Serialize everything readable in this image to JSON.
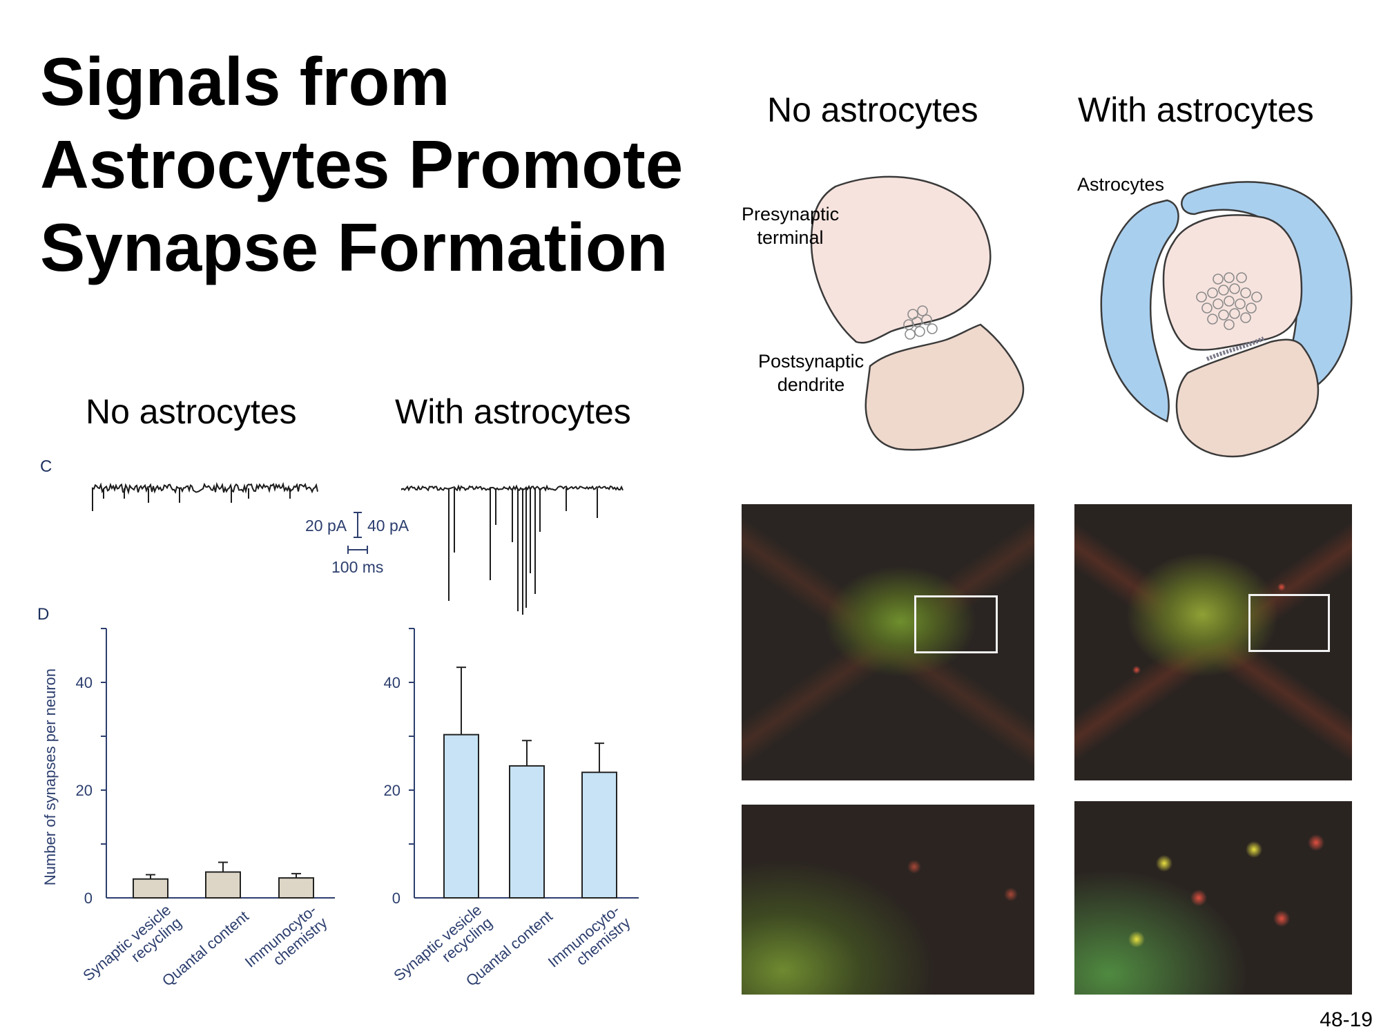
{
  "slide": {
    "title_lines": [
      "Signals from",
      "Astrocytes Promote",
      "Synapse Formation"
    ],
    "slide_number": "48-19"
  },
  "schematic": {
    "no_astrocytes_header": "No astrocytes",
    "with_astrocytes_header": "With astrocytes",
    "presynaptic_label_1": "Presynaptic",
    "presynaptic_label_2": "terminal",
    "postsynaptic_label_1": "Postsynaptic",
    "postsynaptic_label_2": "dendrite",
    "astrocytes_label": "Astrocytes",
    "colors": {
      "terminal": "#f7e3de",
      "dendrite": "#efd8cc",
      "astrocyte": "#a9cfee",
      "outline": "#3a3a3a"
    }
  },
  "recordings": {
    "panel_letter": "C",
    "no_astrocytes_header": "No astrocytes",
    "with_astrocytes_header": "With astrocytes",
    "scale_left": "20 pA",
    "scale_right": "40 pA",
    "scale_time": "100 ms"
  },
  "chart_data": [
    {
      "type": "bar",
      "panel": "D",
      "condition": "No astrocytes",
      "categories": [
        "Synaptic vesicle recycling",
        "Quantal content",
        "Immunocyto-chemistry"
      ],
      "category_lines": [
        [
          "Synaptic vesicle",
          "recycling"
        ],
        [
          "Quantal content"
        ],
        [
          "Immunocyto-",
          "chemistry"
        ]
      ],
      "values": [
        3.5,
        4.8,
        3.7
      ],
      "errors": [
        0.8,
        1.8,
        0.8
      ],
      "ylabel": "Number of synapses per neuron",
      "ylim": [
        0,
        50
      ],
      "yticks": [
        0,
        20,
        40
      ],
      "bar_color": "#ddd6c6"
    },
    {
      "type": "bar",
      "condition": "With astrocytes",
      "categories": [
        "Synaptic vesicle recycling",
        "Quantal content",
        "Immunocyto-chemistry"
      ],
      "category_lines": [
        [
          "Synaptic vesicle",
          "recycling"
        ],
        [
          "Quantal content"
        ],
        [
          "Immunocyto-",
          "chemistry"
        ]
      ],
      "values": [
        30.3,
        24.5,
        23.3
      ],
      "errors": [
        12.5,
        4.7,
        5.4
      ],
      "ylabel": "",
      "ylim": [
        0,
        50
      ],
      "yticks": [
        0,
        20,
        40
      ],
      "bar_color": "#c7e3f5"
    }
  ]
}
